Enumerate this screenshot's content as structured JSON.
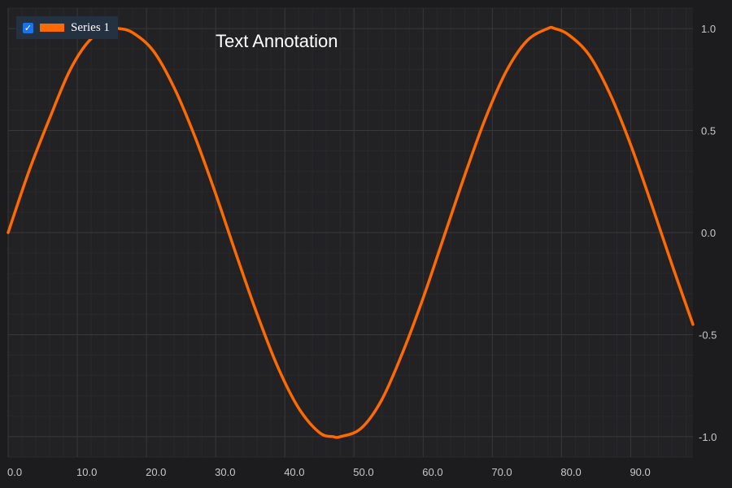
{
  "theme": {
    "background": "#1c1c1e",
    "plot_background": "#222224",
    "major_grid": "#38383b",
    "minor_grid": "#29292c",
    "tick_text": "#c8c8c8",
    "annotation_text": "#ffffff",
    "legend_background": "#233140",
    "checkbox": "#1a73e8"
  },
  "legend": {
    "position": "top-left",
    "items": [
      {
        "label": "Series 1",
        "checked": true,
        "color": "#ff6a00",
        "icon": "check-icon"
      }
    ]
  },
  "annotation": {
    "text": "Text Annotation"
  },
  "chart_data": {
    "type": "line",
    "title": "",
    "xlabel": "",
    "ylabel": "",
    "xlim": [
      0,
      99
    ],
    "ylim": [
      -1.1,
      1.1
    ],
    "x_ticks": [
      0,
      10,
      20,
      30,
      40,
      50,
      60,
      70,
      80,
      90
    ],
    "x_tick_labels": [
      "0.0",
      "10.0",
      "20.0",
      "30.0",
      "40.0",
      "50.0",
      "60.0",
      "70.0",
      "80.0",
      "90.0"
    ],
    "y_ticks": [
      1.0,
      0.5,
      0.0,
      -0.5,
      -1.0
    ],
    "y_tick_labels": [
      "1.0",
      "0.5",
      "0.0",
      "-0.5",
      "-1.0"
    ],
    "y_axis_position": "right",
    "grid": true,
    "series": [
      {
        "name": "Series 1",
        "color": "#ff6a00",
        "x": [
          0,
          3,
          6,
          9,
          12,
          15,
          16,
          18,
          21,
          24,
          27,
          30,
          33,
          36,
          39,
          42,
          45,
          47,
          48,
          51,
          54,
          57,
          60,
          63,
          66,
          69,
          72,
          75,
          78,
          79,
          81,
          84,
          87,
          90,
          93,
          96,
          99
        ],
        "y": [
          0,
          0.3,
          0.56,
          0.8,
          0.95,
          1.0,
          1.0,
          0.98,
          0.89,
          0.71,
          0.47,
          0.19,
          -0.11,
          -0.4,
          -0.66,
          -0.86,
          -0.98,
          -1.0,
          -1.0,
          -0.96,
          -0.82,
          -0.59,
          -0.32,
          -0.02,
          0.28,
          0.56,
          0.79,
          0.94,
          1.0,
          1.0,
          0.97,
          0.87,
          0.68,
          0.43,
          0.14,
          -0.16,
          -0.45
        ]
      }
    ]
  }
}
